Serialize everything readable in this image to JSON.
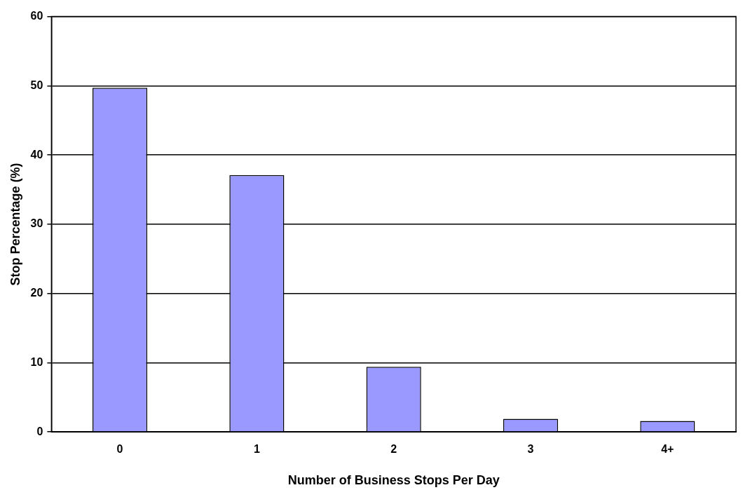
{
  "chart_data": {
    "type": "bar",
    "xlabel": "Number of Business Stops Per Day",
    "ylabel": "Stop Percentage (%)",
    "categories": [
      "0",
      "1",
      "2",
      "3",
      "4+"
    ],
    "values": [
      49.7,
      37.1,
      9.4,
      1.9,
      1.6
    ],
    "color": "#9999ff",
    "ylim": [
      0,
      60
    ],
    "yticks": [
      0,
      10,
      20,
      30,
      40,
      50,
      60
    ],
    "grid": "y",
    "legend": false
  }
}
